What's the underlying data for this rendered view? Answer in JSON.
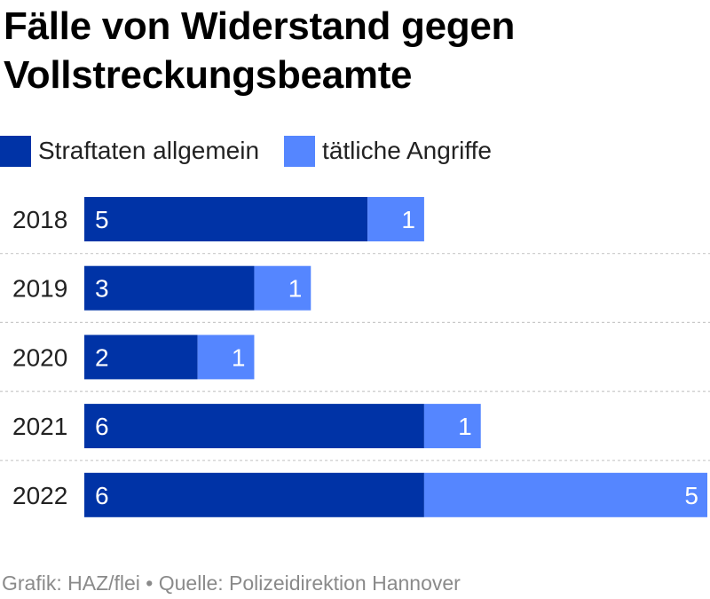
{
  "title": "Fälle von Widerstand gegen Vollstreckungsbeamte",
  "footer": "Grafik: HAZ/flei • Quelle: Polizeidirektion Hannover",
  "colors": {
    "dark": "#0033a6",
    "light": "#5586ff",
    "grid": "#c9c9c9",
    "text": "#222222",
    "footer": "#8a8a8a"
  },
  "chart_data": {
    "type": "bar",
    "orientation": "horizontal",
    "stacked": true,
    "categories": [
      "2018",
      "2019",
      "2020",
      "2021",
      "2022"
    ],
    "series": [
      {
        "name": "Straftaten allgemein",
        "color": "#0033a6",
        "values": [
          5,
          3,
          2,
          6,
          6
        ]
      },
      {
        "name": "tätliche Angriffe",
        "color": "#5586ff",
        "values": [
          1,
          1,
          1,
          1,
          5
        ]
      }
    ],
    "title": "Fälle von Widerstand gegen Vollstreckungsbeamte",
    "xlim": [
      0,
      11
    ],
    "legend_position": "top-left",
    "grid": false
  }
}
